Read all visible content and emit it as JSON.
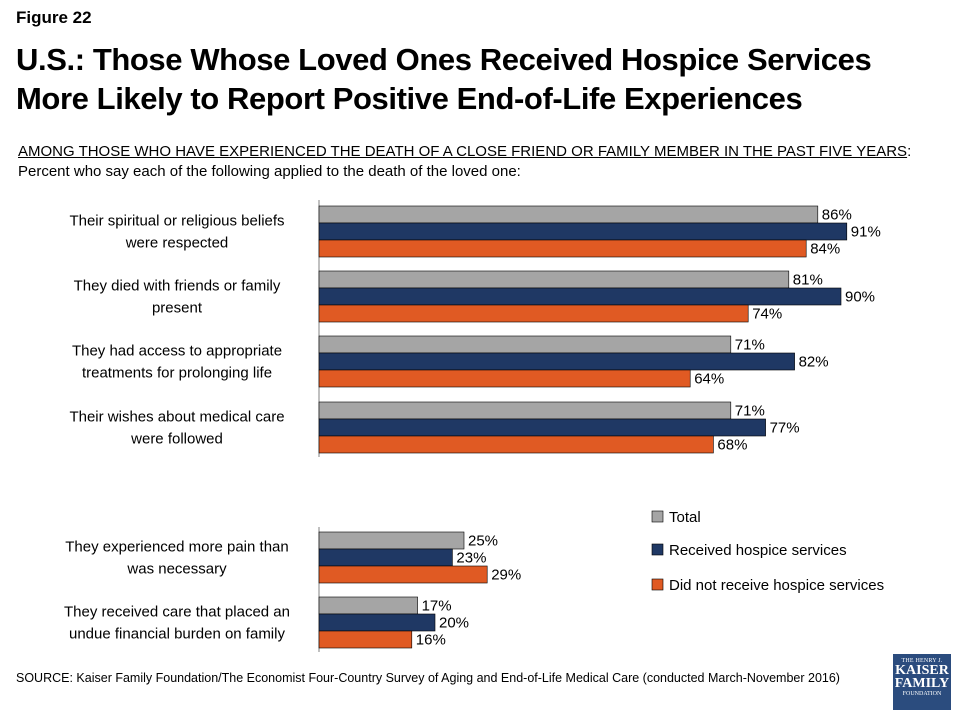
{
  "figure_label": "Figure 22",
  "title": "U.S.: Those Whose Loved Ones Received Hospice Services More Likely to Report Positive End-of-Life Experiences",
  "subtitle_underlined": "AMONG THOSE WHO HAVE EXPERIENCED THE DEATH OF A CLOSE FRIEND OR FAMILY MEMBER IN THE PAST FIVE YEARS",
  "subtitle_rest": ":",
  "subtitle_line2": "Percent who say each of the following applied to the death of the loved one:",
  "source": "SOURCE: Kaiser Family Foundation/The Economist Four-Country Survey of Aging and End-of-Life Medical Care (conducted March-November 2016)",
  "logo": {
    "line1": "THE HENRY J.",
    "line2": "KAISER",
    "line3": "FAMILY",
    "line4": "FOUNDATION"
  },
  "chart_data": {
    "type": "bar",
    "orientation": "horizontal",
    "categories": [
      [
        "Their spiritual or religious beliefs",
        "were respected"
      ],
      [
        "They died with friends or family",
        "present"
      ],
      [
        "They had access to appropriate",
        "treatments for prolonging life"
      ],
      [
        "Their wishes about medical care",
        "were followed"
      ],
      [
        "They experienced more pain than",
        "was necessary"
      ],
      [
        "They received care that placed an",
        "undue financial burden on family"
      ]
    ],
    "series": [
      {
        "name": "Total",
        "color": "#a5a5a5",
        "values": [
          86,
          81,
          71,
          71,
          25,
          17
        ],
        "labels": [
          "86%",
          "81%",
          "71%",
          "71%",
          "25%",
          "17%"
        ]
      },
      {
        "name": "Received hospice services",
        "color": "#1f3864",
        "values": [
          91,
          90,
          82,
          77,
          23,
          20
        ],
        "labels": [
          "91%",
          "90%",
          "82%",
          "77%",
          "23%",
          "20%"
        ]
      },
      {
        "name": "Did not receive hospice services",
        "color": "#e05a23",
        "values": [
          84,
          74,
          64,
          68,
          29,
          16
        ],
        "labels": [
          "84%",
          "74%",
          "64%",
          "68%",
          "29%",
          "16%"
        ]
      }
    ],
    "xlim": [
      0,
      100
    ],
    "legend_position": "right"
  }
}
